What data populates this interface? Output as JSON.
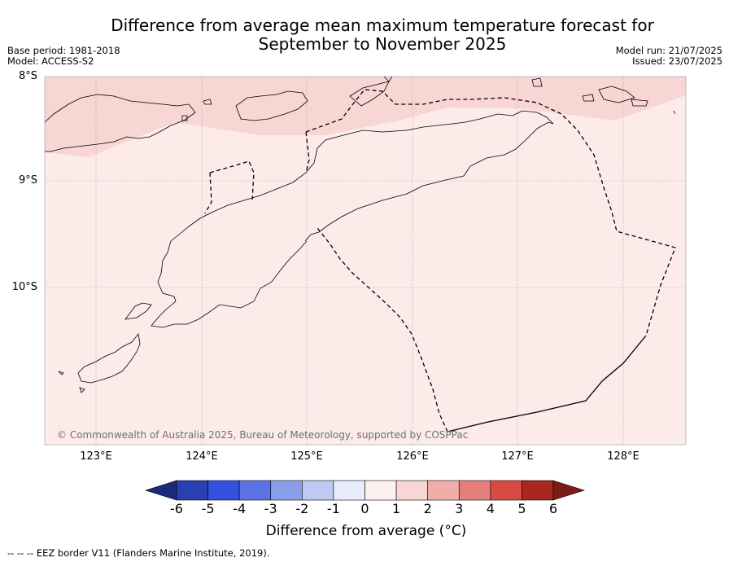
{
  "title": "Difference from average mean maximum temperature forecast for September to November 2025",
  "title_line1": "Difference from average mean maximum temperature forecast for",
  "title_line2": "September to November 2025",
  "base_period": "Base period: 1981-2018",
  "model": "Model: ACCESS-S2",
  "model_run": "Model run: 21/07/2025",
  "issued": "Issued: 23/07/2025",
  "copyright": "© Commonwealth of Australia 2025, Bureau of Meteorology, supported by COSPPac",
  "latitude_labels": [
    "8°S",
    "9°S",
    "10°S"
  ],
  "longitude_labels": [
    "123°E",
    "124°E",
    "125°E",
    "126°E",
    "127°E",
    "128°E"
  ],
  "colorbar": {
    "title": "Difference from average (°C)",
    "title_text": "Difference from average (",
    "title_unit": "°C)",
    "ticks": [
      "-6",
      "-5",
      "-4",
      "-3",
      "-2",
      "-1",
      "0",
      "1",
      "2",
      "3",
      "4",
      "5",
      "6"
    ],
    "colors": [
      "#1c2a7a",
      "#2a3fb0",
      "#3550e0",
      "#5a72e3",
      "#8a9de8",
      "#bfc9f1",
      "#e9edfb",
      "#fdf1f0",
      "#f7d6d3",
      "#efaea9",
      "#e57f79",
      "#d94a42",
      "#a8271f",
      "#7a1c15"
    ]
  },
  "map_colors": {
    "zero_to_one": "#fcebe9",
    "one_to_two": "#f7d6d3"
  },
  "footer": "--  --  -- EEZ border V11 (Flanders Marine Institute, 2019)."
}
